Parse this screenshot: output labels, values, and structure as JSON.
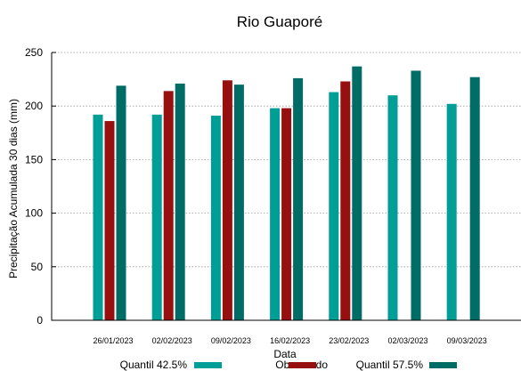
{
  "chart_data": {
    "type": "bar",
    "title": "Rio Guaporé",
    "xlabel": "Data",
    "ylabel": "Precipitação Acumulada 30 dias (mm)",
    "ylim": [
      0,
      250
    ],
    "yticks": [
      0,
      50,
      100,
      150,
      200,
      250
    ],
    "grid": true,
    "legend_position": "bottom",
    "categories": [
      "26/01/2023",
      "02/02/2023",
      "09/02/2023",
      "16/02/2023",
      "23/02/2023",
      "02/03/2023",
      "09/03/2023"
    ],
    "series": [
      {
        "name": "Quantil 42.5%",
        "color": "#009e96",
        "values": [
          192,
          192,
          191,
          198,
          213,
          210,
          202
        ]
      },
      {
        "name": "Observado",
        "color": "#961010",
        "values": [
          186,
          214,
          224,
          198,
          223,
          null,
          null
        ]
      },
      {
        "name": "Quantil 57.5%",
        "color": "#006c66",
        "values": [
          219,
          221,
          220,
          226,
          237,
          233,
          227
        ]
      }
    ]
  }
}
